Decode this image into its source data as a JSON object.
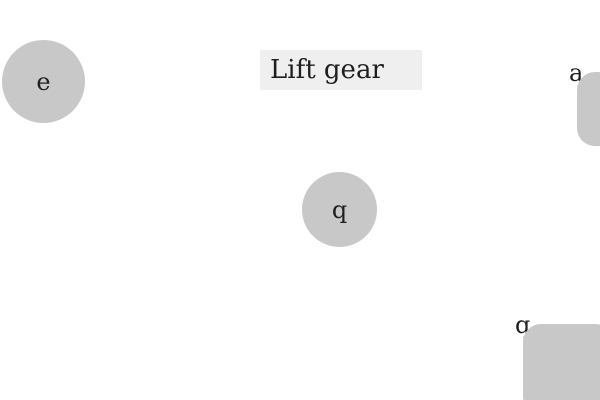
{
  "title": "Lift gear",
  "colors": {
    "background": "#ffffff",
    "shape": "#c8c8c8",
    "title_box": "#efefef",
    "text": "#1f1f1f"
  },
  "objects": {
    "circle_left": {
      "label": "e"
    },
    "circle_center": {
      "label": "q"
    },
    "square_top_right": {
      "label": "a"
    },
    "square_bottom_right": {
      "label": "q"
    }
  }
}
